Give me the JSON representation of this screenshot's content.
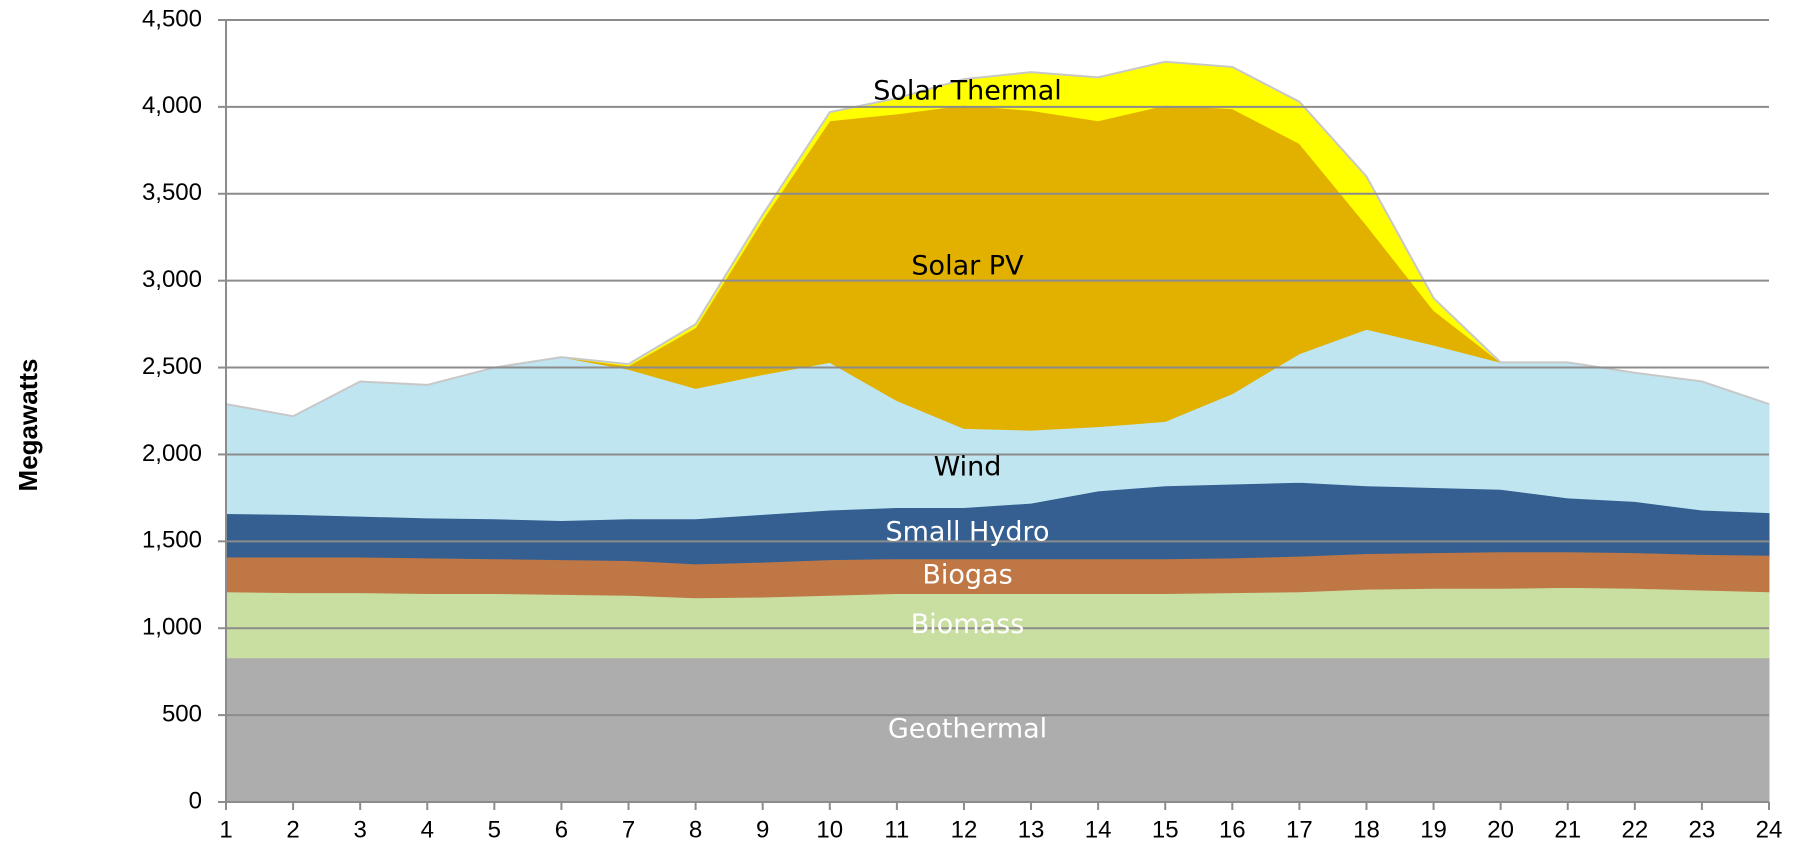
{
  "chart_data": {
    "type": "stacked_area",
    "y_label": "Megawatts",
    "x": [
      1,
      2,
      3,
      4,
      5,
      6,
      7,
      8,
      9,
      10,
      11,
      12,
      13,
      14,
      15,
      16,
      17,
      18,
      19,
      20,
      21,
      22,
      23,
      24
    ],
    "xlim": [
      1,
      24
    ],
    "xticks": [
      1,
      2,
      3,
      4,
      5,
      6,
      7,
      8,
      9,
      10,
      11,
      12,
      13,
      14,
      15,
      16,
      17,
      18,
      19,
      20,
      21,
      22,
      23,
      24
    ],
    "ylim": [
      0,
      4500
    ],
    "yticks": [
      0,
      {
        "value": 500,
        "label": "500"
      },
      {
        "value": 1000,
        "label": "1,000"
      },
      {
        "value": 1500,
        "label": "1,500"
      },
      {
        "value": 2000,
        "label": "2,000"
      },
      {
        "value": 2500,
        "label": "2,500"
      },
      {
        "value": 3000,
        "label": "3,000"
      },
      {
        "value": 3500,
        "label": "3,500"
      },
      {
        "value": 4000,
        "label": "4,000"
      },
      {
        "value": 4500,
        "label": "4,500"
      }
    ],
    "grid": true,
    "series": [
      {
        "name": "Geothermal",
        "color": "#adadad",
        "values": [
          830,
          830,
          830,
          830,
          830,
          830,
          830,
          830,
          830,
          830,
          830,
          830,
          830,
          830,
          830,
          830,
          830,
          830,
          830,
          830,
          830,
          830,
          830,
          830
        ]
      },
      {
        "name": "Biomass",
        "color": "#c9dea1",
        "values": [
          380,
          375,
          375,
          370,
          370,
          365,
          360,
          345,
          350,
          360,
          370,
          370,
          370,
          370,
          370,
          375,
          380,
          395,
          400,
          400,
          405,
          400,
          390,
          380
        ]
      },
      {
        "name": "Biogas",
        "color": "#bf7845",
        "values": [
          200,
          205,
          205,
          205,
          200,
          200,
          200,
          195,
          200,
          205,
          200,
          200,
          200,
          200,
          200,
          200,
          205,
          205,
          205,
          210,
          205,
          205,
          205,
          210
        ]
      },
      {
        "name": "Small Hydro",
        "color": "#355f91",
        "values": [
          250,
          245,
          235,
          230,
          230,
          225,
          240,
          260,
          275,
          285,
          295,
          295,
          320,
          390,
          420,
          425,
          425,
          390,
          375,
          360,
          310,
          295,
          255,
          245
        ]
      },
      {
        "name": "Wind",
        "color": "#bfe6f0",
        "values": [
          630,
          565,
          775,
          765,
          870,
          940,
          860,
          750,
          805,
          850,
          615,
          455,
          420,
          370,
          370,
          520,
          740,
          900,
          820,
          730,
          780,
          740,
          740,
          625
        ]
      },
      {
        "name": "Solar PV",
        "color": "#e2b100",
        "values": [
          0,
          0,
          0,
          0,
          0,
          0,
          20,
          350,
          890,
          1390,
          1650,
          1860,
          1840,
          1760,
          1820,
          1640,
          1210,
          600,
          200,
          0,
          0,
          0,
          0,
          0
        ]
      },
      {
        "name": "Solar Thermal",
        "color": "#ffff00",
        "values": [
          0,
          0,
          0,
          0,
          0,
          0,
          10,
          20,
          30,
          50,
          90,
          150,
          220,
          250,
          250,
          240,
          240,
          280,
          70,
          0,
          0,
          0,
          0,
          0
        ]
      }
    ]
  }
}
